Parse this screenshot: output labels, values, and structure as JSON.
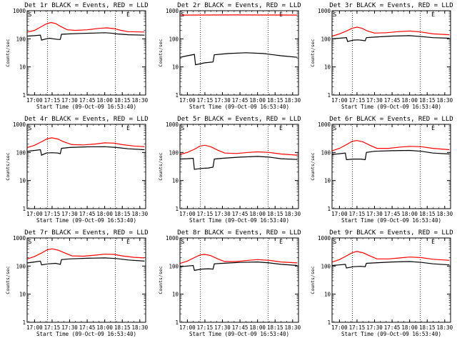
{
  "figure": {
    "panel_count": 9,
    "colors": {
      "events": "#000000",
      "lld": "#ff0000",
      "axes": "#000000",
      "background": "#ffffff"
    }
  },
  "chart_data": [
    {
      "type": "line",
      "title": "Det 1r BLACK = Events, RED = LLD",
      "xlabel": "Start Time (09-Oct-09 16:53:40)",
      "ylabel": "Counts/sec",
      "yscale": "log",
      "ylim": [
        1,
        1000
      ],
      "y_tick_labels": [
        "1",
        "10",
        "100",
        "1000"
      ],
      "x_tick_labels": [
        "17:00",
        "17:15",
        "17:30",
        "17:45",
        "18:00",
        "18:15",
        "18:30"
      ],
      "xlim": [
        "16:53:40",
        "18:35:00"
      ],
      "markers": {
        "S": "16:54",
        "E": "18:18"
      },
      "vlines": [
        "17:11",
        "18:09"
      ],
      "series": [
        {
          "name": "Events",
          "color": "#000000",
          "x": [
            "16:54",
            "17:00",
            "17:05",
            "17:06",
            "17:10",
            "17:13",
            "17:16",
            "17:20",
            "17:22",
            "17:23",
            "17:30",
            "17:40",
            "17:50",
            "18:00",
            "18:05",
            "18:10",
            "18:20",
            "18:34"
          ],
          "y": [
            125,
            130,
            135,
            90,
            100,
            105,
            100,
            95,
            95,
            145,
            150,
            155,
            160,
            165,
            160,
            150,
            140,
            135
          ]
        },
        {
          "name": "LLD",
          "color": "#ff0000",
          "x": [
            "16:54",
            "17:00",
            "17:05",
            "17:10",
            "17:14",
            "17:18",
            "17:22",
            "17:28",
            "17:35",
            "17:45",
            "17:55",
            "18:02",
            "18:08",
            "18:14",
            "18:20",
            "18:34"
          ],
          "y": [
            175,
            200,
            260,
            340,
            380,
            350,
            280,
            210,
            200,
            210,
            235,
            245,
            230,
            200,
            180,
            175
          ]
        }
      ]
    },
    {
      "type": "line",
      "title": "Det 2r BLACK = Events, RED = LLD",
      "xlabel": "Start Time (09-Oct-09 16:53:40)",
      "ylabel": "Counts/sec",
      "yscale": "log",
      "ylim": [
        1,
        1000
      ],
      "y_tick_labels": [
        "1",
        "10",
        "100",
        "1000"
      ],
      "x_tick_labels": [
        "17:00",
        "17:15",
        "17:30",
        "17:45",
        "18:00",
        "18:15",
        "18:30"
      ],
      "xlim": [
        "16:53:40",
        "18:35:00"
      ],
      "markers": {
        "S": "16:54",
        "E": "18:18"
      },
      "vlines": [
        "17:11",
        "18:09"
      ],
      "series": [
        {
          "name": "Events",
          "color": "#000000",
          "x": [
            "16:54",
            "17:00",
            "17:06",
            "17:07",
            "17:15",
            "17:22",
            "17:23",
            "17:35",
            "17:50",
            "18:05",
            "18:20",
            "18:34"
          ],
          "y": [
            22,
            25,
            28,
            12,
            14,
            15,
            27,
            30,
            32,
            30,
            25,
            22
          ]
        },
        {
          "name": "LLD",
          "color": "#ff0000",
          "x": [
            "16:54",
            "17:15",
            "17:40",
            "18:05",
            "18:34"
          ],
          "y": [
            700,
            705,
            710,
            705,
            700
          ]
        }
      ]
    },
    {
      "type": "line",
      "title": "Det 3r BLACK = Events, RED = LLD",
      "xlabel": "Start Time (09-Oct-09 16:53:40)",
      "ylabel": "Counts/sec",
      "yscale": "log",
      "ylim": [
        1,
        1000
      ],
      "y_tick_labels": [
        "1",
        "10",
        "100",
        "1000"
      ],
      "x_tick_labels": [
        "17:00",
        "17:15",
        "17:30",
        "17:45",
        "18:00",
        "18:15",
        "18:30"
      ],
      "xlim": [
        "16:53:40",
        "18:35:00"
      ],
      "markers": {
        "S": "16:54",
        "E": "18:18"
      },
      "vlines": [
        "17:11",
        "18:09"
      ],
      "series": [
        {
          "name": "Events",
          "color": "#000000",
          "x": [
            "16:54",
            "17:00",
            "17:06",
            "17:07",
            "17:12",
            "17:16",
            "17:20",
            "17:22",
            "17:23",
            "17:30",
            "17:45",
            "18:00",
            "18:10",
            "18:20",
            "18:34"
          ],
          "y": [
            100,
            105,
            110,
            80,
            90,
            92,
            88,
            85,
            110,
            115,
            125,
            130,
            120,
            110,
            105
          ]
        },
        {
          "name": "LLD",
          "color": "#ff0000",
          "x": [
            "16:54",
            "17:00",
            "17:06",
            "17:11",
            "17:15",
            "17:19",
            "17:24",
            "17:30",
            "17:40",
            "17:50",
            "18:00",
            "18:10",
            "18:20",
            "18:34"
          ],
          "y": [
            125,
            150,
            190,
            240,
            260,
            240,
            190,
            160,
            165,
            180,
            190,
            175,
            150,
            140
          ]
        }
      ]
    },
    {
      "type": "line",
      "title": "Det 4r BLACK = Events, RED = LLD",
      "xlabel": "Start Time (09-Oct-09 16:53:40)",
      "ylabel": "Counts/sec",
      "yscale": "log",
      "ylim": [
        1,
        1000
      ],
      "y_tick_labels": [
        "1",
        "10",
        "100",
        "1000"
      ],
      "x_tick_labels": [
        "17:00",
        "17:15",
        "17:30",
        "17:45",
        "18:00",
        "18:15",
        "18:30"
      ],
      "xlim": [
        "16:53:40",
        "18:35:00"
      ],
      "markers": {
        "S": "16:54",
        "E": "18:18"
      },
      "vlines": [
        "17:11",
        "18:09"
      ],
      "series": [
        {
          "name": "Events",
          "color": "#000000",
          "x": [
            "16:54",
            "17:00",
            "17:05",
            "17:06",
            "17:10",
            "17:15",
            "17:20",
            "17:22",
            "17:23",
            "17:30",
            "17:45",
            "18:00",
            "18:10",
            "18:20",
            "18:34"
          ],
          "y": [
            110,
            118,
            125,
            80,
            95,
            98,
            95,
            90,
            140,
            150,
            158,
            160,
            150,
            135,
            125
          ]
        },
        {
          "name": "LLD",
          "color": "#ff0000",
          "x": [
            "16:54",
            "17:00",
            "17:06",
            "17:11",
            "17:15",
            "17:20",
            "17:25",
            "17:32",
            "17:42",
            "17:52",
            "18:00",
            "18:08",
            "18:15",
            "18:25",
            "18:34"
          ],
          "y": [
            150,
            180,
            240,
            310,
            330,
            300,
            240,
            190,
            185,
            200,
            220,
            215,
            190,
            170,
            160
          ]
        }
      ]
    },
    {
      "type": "line",
      "title": "Det 5r BLACK = Events, RED = LLD",
      "xlabel": "Start Time (09-Oct-09 16:53:40)",
      "ylabel": "Counts/sec",
      "yscale": "log",
      "ylim": [
        1,
        1000
      ],
      "y_tick_labels": [
        "1",
        "10",
        "100",
        "1000"
      ],
      "x_tick_labels": [
        "17:00",
        "17:15",
        "17:30",
        "17:45",
        "18:00",
        "18:15",
        "18:30"
      ],
      "xlim": [
        "16:53:40",
        "18:35:00"
      ],
      "markers": {
        "S": "16:54",
        "E": "18:18"
      },
      "vlines": [
        "17:11",
        "18:09"
      ],
      "series": [
        {
          "name": "Events",
          "color": "#000000",
          "x": [
            "16:54",
            "17:00",
            "17:05",
            "17:06",
            "17:12",
            "17:18",
            "17:22",
            "17:23",
            "17:30",
            "17:45",
            "18:00",
            "18:10",
            "18:20",
            "18:34"
          ],
          "y": [
            58,
            60,
            62,
            25,
            27,
            28,
            30,
            58,
            62,
            68,
            72,
            68,
            60,
            56
          ]
        },
        {
          "name": "LLD",
          "color": "#ff0000",
          "x": [
            "16:54",
            "17:00",
            "17:06",
            "17:11",
            "17:15",
            "17:20",
            "17:26",
            "17:32",
            "17:42",
            "17:52",
            "18:00",
            "18:10",
            "18:20",
            "18:34"
          ],
          "y": [
            85,
            100,
            130,
            170,
            180,
            160,
            120,
            95,
            92,
            100,
            105,
            100,
            88,
            80
          ]
        }
      ]
    },
    {
      "type": "line",
      "title": "Det 6r BLACK = Events, RED = LLD",
      "xlabel": "Start Time (09-Oct-09 16:53:40)",
      "ylabel": "Counts/sec",
      "yscale": "log",
      "ylim": [
        1,
        1000
      ],
      "y_tick_labels": [
        "1",
        "10",
        "100",
        "1000"
      ],
      "x_tick_labels": [
        "17:00",
        "17:15",
        "17:30",
        "17:45",
        "18:00",
        "18:15",
        "18:30"
      ],
      "xlim": [
        "16:53:40",
        "18:35:00"
      ],
      "markers": {
        "S": "16:54",
        "E": "18:18"
      },
      "vlines": [
        "17:11",
        "18:09"
      ],
      "series": [
        {
          "name": "Events",
          "color": "#000000",
          "x": [
            "16:54",
            "17:00",
            "17:05",
            "17:06",
            "17:12",
            "17:18",
            "17:22",
            "17:23",
            "17:30",
            "17:45",
            "18:00",
            "18:10",
            "18:20",
            "18:34"
          ],
          "y": [
            85,
            90,
            95,
            55,
            58,
            58,
            55,
            100,
            110,
            115,
            118,
            110,
            95,
            88
          ]
        },
        {
          "name": "LLD",
          "color": "#ff0000",
          "x": [
            "16:54",
            "17:00",
            "17:06",
            "17:11",
            "17:15",
            "17:20",
            "17:26",
            "17:32",
            "17:42",
            "17:52",
            "18:00",
            "18:10",
            "18:20",
            "18:34"
          ],
          "y": [
            115,
            140,
            190,
            250,
            265,
            240,
            180,
            140,
            140,
            155,
            165,
            160,
            140,
            125
          ]
        }
      ]
    },
    {
      "type": "line",
      "title": "Det 7r BLACK = Events, RED = LLD",
      "xlabel": "Start Time (09-Oct-09 16:53:40)",
      "ylabel": "Counts/sec",
      "yscale": "log",
      "ylim": [
        1,
        1000
      ],
      "y_tick_labels": [
        "1",
        "10",
        "100",
        "1000"
      ],
      "x_tick_labels": [
        "17:00",
        "17:15",
        "17:30",
        "17:45",
        "18:00",
        "18:15",
        "18:30"
      ],
      "xlim": [
        "16:53:40",
        "18:35:00"
      ],
      "markers": {
        "S": "16:54",
        "E": "18:18"
      },
      "vlines": [
        "17:11",
        "18:09"
      ],
      "series": [
        {
          "name": "Events",
          "color": "#000000",
          "x": [
            "16:54",
            "17:00",
            "17:05",
            "17:06",
            "17:12",
            "17:18",
            "17:22",
            "17:23",
            "17:30",
            "17:45",
            "18:00",
            "18:10",
            "18:20",
            "18:34"
          ],
          "y": [
            130,
            140,
            150,
            110,
            120,
            125,
            115,
            170,
            180,
            190,
            195,
            185,
            165,
            150
          ]
        },
        {
          "name": "LLD",
          "color": "#ff0000",
          "x": [
            "16:54",
            "17:00",
            "17:06",
            "17:11",
            "17:15",
            "17:20",
            "17:26",
            "17:32",
            "17:42",
            "17:52",
            "18:00",
            "18:08",
            "18:15",
            "18:25",
            "18:34"
          ],
          "y": [
            180,
            220,
            290,
            380,
            410,
            370,
            290,
            230,
            225,
            245,
            265,
            260,
            230,
            205,
            195
          ]
        }
      ]
    },
    {
      "type": "line",
      "title": "Det 8r BLACK = Events, RED = LLD",
      "xlabel": "Start Time (09-Oct-09 16:53:40)",
      "ylabel": "Counts/sec",
      "yscale": "log",
      "ylim": [
        1,
        1000
      ],
      "y_tick_labels": [
        "1",
        "10",
        "100",
        "1000"
      ],
      "x_tick_labels": [
        "17:00",
        "17:15",
        "17:30",
        "17:45",
        "18:00",
        "18:15",
        "18:30"
      ],
      "xlim": [
        "16:53:40",
        "18:35:00"
      ],
      "markers": {
        "S": "16:54",
        "E": "18:18"
      },
      "vlines": [
        "17:11",
        "18:09"
      ],
      "series": [
        {
          "name": "Events",
          "color": "#000000",
          "x": [
            "16:54",
            "17:00",
            "17:05",
            "17:06",
            "17:12",
            "17:18",
            "17:22",
            "17:23",
            "17:30",
            "17:45",
            "18:00",
            "18:10",
            "18:20",
            "18:34"
          ],
          "y": [
            95,
            100,
            105,
            70,
            78,
            80,
            78,
            120,
            125,
            135,
            140,
            130,
            115,
            105
          ]
        },
        {
          "name": "LLD",
          "color": "#ff0000",
          "x": [
            "16:54",
            "17:00",
            "17:06",
            "17:11",
            "17:15",
            "17:20",
            "17:26",
            "17:32",
            "17:42",
            "17:52",
            "18:00",
            "18:10",
            "18:20",
            "18:34"
          ],
          "y": [
            125,
            150,
            200,
            250,
            260,
            235,
            180,
            145,
            145,
            160,
            170,
            160,
            140,
            130
          ]
        }
      ]
    },
    {
      "type": "line",
      "title": "Det 9r BLACK = Events, RED = LLD",
      "xlabel": "Start Time (09-Oct-09 16:53:40)",
      "ylabel": "Counts/sec",
      "yscale": "log",
      "ylim": [
        1,
        1000
      ],
      "y_tick_labels": [
        "1",
        "10",
        "100",
        "1000"
      ],
      "x_tick_labels": [
        "17:00",
        "17:15",
        "17:30",
        "17:45",
        "18:00",
        "18:15",
        "18:30"
      ],
      "xlim": [
        "16:53:40",
        "18:35:00"
      ],
      "markers": {
        "S": "16:54",
        "E": "18:18"
      },
      "vlines": [
        "17:11",
        "18:09"
      ],
      "series": [
        {
          "name": "Events",
          "color": "#000000",
          "x": [
            "16:54",
            "17:00",
            "17:05",
            "17:06",
            "17:12",
            "17:18",
            "17:22",
            "17:23",
            "17:30",
            "17:45",
            "18:00",
            "18:10",
            "18:20",
            "18:34"
          ],
          "y": [
            105,
            110,
            115,
            85,
            95,
            98,
            95,
            125,
            130,
            140,
            145,
            135,
            120,
            110
          ]
        },
        {
          "name": "LLD",
          "color": "#ff0000",
          "x": [
            "16:54",
            "17:00",
            "17:06",
            "17:11",
            "17:15",
            "17:20",
            "17:26",
            "17:32",
            "17:42",
            "17:52",
            "18:00",
            "18:10",
            "18:20",
            "18:34"
          ],
          "y": [
            140,
            170,
            230,
            300,
            330,
            300,
            230,
            180,
            180,
            195,
            210,
            200,
            175,
            160
          ]
        }
      ]
    }
  ]
}
